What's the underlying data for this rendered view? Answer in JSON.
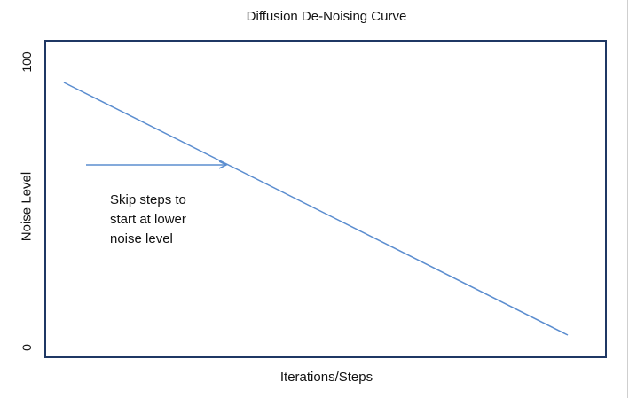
{
  "title": "Diffusion De-Noising Curve",
  "xlabel": "Iterations/Steps",
  "ylabel": "Noise Level",
  "yticks": {
    "top": "100",
    "bottom": "0"
  },
  "annotation": {
    "lines": [
      "Skip steps to",
      "start at lower",
      "noise level"
    ]
  },
  "colors": {
    "frame": "#1F3864",
    "curve": "#5B8DCF"
  }
}
